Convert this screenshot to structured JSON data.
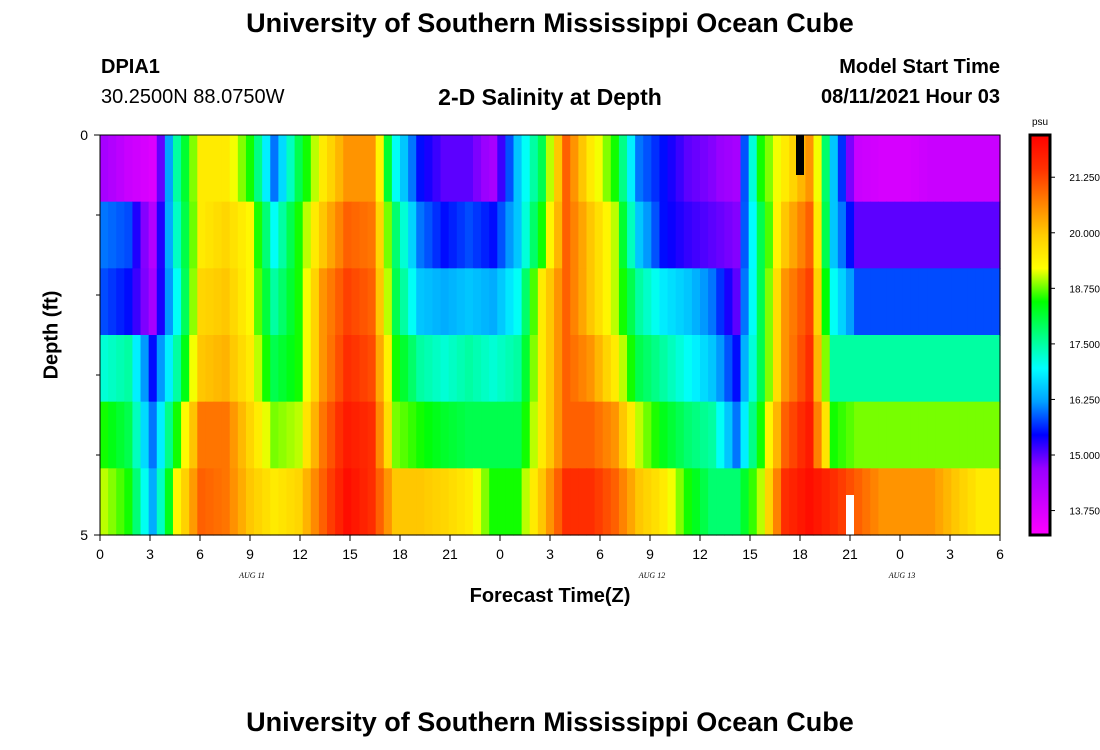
{
  "header": {
    "title": "University of Southern Mississippi Ocean Cube",
    "station": "DPIA1",
    "coords": "30.2500N  88.0750W",
    "subtitle": "2-D Salinity at Depth",
    "model_start_label": "Model Start Time",
    "model_start_value": "08/11/2021 Hour 03"
  },
  "footer": {
    "title": "University of Southern Mississippi Ocean Cube"
  },
  "colors": {
    "ramp": [
      "#ff00ff",
      "#cc00ff",
      "#9900ff",
      "#0000ff",
      "#00a0ff",
      "#00ffff",
      "#00ff80",
      "#00ff00",
      "#ffff00",
      "#ffcc00",
      "#ff8000",
      "#ff3000",
      "#ff0000"
    ]
  },
  "chart_data": {
    "type": "heatmap",
    "title": "2-D Salinity at Depth",
    "xlabel": "Forecast Time(Z)",
    "ylabel": "Depth (ft)",
    "units": "psu",
    "x_hours": [
      0,
      3,
      6,
      9,
      12,
      15,
      18,
      21,
      24,
      27,
      30,
      33,
      36,
      39,
      42,
      45,
      48,
      51,
      54
    ],
    "x_tick_labels": [
      "0",
      "3",
      "6",
      "9",
      "12",
      "15",
      "18",
      "21",
      "0",
      "3",
      "6",
      "9",
      "12",
      "15",
      "18",
      "21",
      "0",
      "3",
      "6"
    ],
    "date_labels": [
      {
        "label": "AUG  11",
        "hour": 9
      },
      {
        "label": "AUG  12",
        "hour": 33
      },
      {
        "label": "AUG  13",
        "hour": 48
      }
    ],
    "ylim": [
      0,
      5
    ],
    "y_tick_labels": [
      {
        "value": 0,
        "label": "0"
      },
      {
        "value": 5,
        "label": "5"
      }
    ],
    "y_minor_ticks": [
      1,
      2,
      3,
      4
    ],
    "depth_levels": [
      0,
      1,
      2,
      3,
      4,
      5
    ],
    "vmin": 13.2,
    "vmax": 22.2,
    "colorbar_ticks": [
      "13.750",
      "15.000",
      "16.250",
      "17.500",
      "18.750",
      "20.000",
      "21.250"
    ],
    "colorbar_tick_values": [
      13.75,
      15.0,
      16.25,
      17.5,
      18.75,
      20.0,
      21.25
    ],
    "salinity": [
      [
        14.5,
        14.0,
        13.7,
        17.5,
        19.5,
        19.5,
        18.5,
        16.0,
        18.0,
        19.5,
        20.5,
        20.5,
        17.0,
        15.5,
        15.0,
        15.0,
        14.5,
        16.5,
        18.0,
        21.0,
        19.5,
        18.5,
        16.0,
        15.5,
        15.0,
        14.8,
        14.5,
        18.5,
        19.5,
        20.5,
        16.5,
        14.0,
        13.8,
        13.8,
        14.0,
        14.0,
        14.0
      ],
      [
        16.0,
        15.8,
        14.3,
        17.3,
        19.5,
        19.8,
        19.3,
        17.0,
        18.5,
        20.0,
        21.0,
        20.8,
        17.8,
        16.0,
        15.5,
        15.8,
        15.5,
        16.5,
        18.5,
        21.0,
        20.0,
        19.0,
        16.5,
        15.5,
        15.2,
        15.0,
        14.8,
        18.0,
        20.0,
        21.0,
        16.5,
        15.0,
        15.0,
        15.0,
        15.0,
        15.0,
        15.0
      ],
      [
        15.8,
        15.5,
        14.5,
        17.0,
        19.8,
        20.0,
        19.3,
        17.5,
        18.5,
        20.5,
        21.3,
        21.0,
        18.0,
        16.5,
        16.3,
        16.5,
        16.3,
        17.0,
        19.5,
        21.0,
        20.0,
        19.0,
        17.5,
        16.8,
        16.5,
        16.0,
        15.0,
        18.0,
        20.5,
        21.3,
        17.0,
        15.8,
        15.8,
        15.8,
        15.8,
        15.8,
        15.8
      ],
      [
        17.2,
        17.5,
        15.5,
        17.5,
        20.0,
        20.2,
        19.5,
        18.0,
        18.5,
        20.5,
        21.5,
        21.2,
        18.5,
        17.5,
        17.2,
        17.5,
        17.2,
        17.5,
        19.5,
        21.0,
        20.5,
        19.5,
        18.0,
        17.5,
        17.0,
        16.5,
        15.5,
        18.0,
        20.5,
        21.5,
        17.5,
        17.5,
        17.5,
        17.5,
        17.5,
        17.5,
        17.5
      ],
      [
        18.5,
        18.0,
        16.0,
        18.5,
        20.8,
        20.8,
        19.8,
        18.8,
        19.0,
        20.8,
        21.8,
        21.5,
        18.8,
        18.5,
        18.2,
        18.0,
        18.0,
        18.0,
        19.5,
        21.0,
        21.0,
        20.5,
        19.0,
        18.3,
        17.8,
        17.5,
        16.0,
        18.5,
        21.0,
        21.8,
        18.5,
        18.8,
        18.8,
        18.8,
        18.8,
        18.8,
        18.8
      ],
      [
        19.0,
        18.5,
        16.3,
        19.3,
        21.0,
        20.8,
        20.0,
        19.5,
        19.8,
        21.0,
        22.0,
        21.5,
        20.0,
        20.0,
        19.8,
        19.5,
        18.5,
        18.5,
        20.0,
        21.5,
        21.5,
        21.0,
        20.0,
        19.5,
        18.5,
        17.8,
        17.8,
        19.0,
        21.5,
        22.0,
        21.5,
        21.0,
        20.5,
        20.5,
        20.5,
        20.0,
        19.5
      ]
    ],
    "markers": [
      {
        "hour": 42,
        "depth_from": 0,
        "depth_to": 0.5,
        "color": "#000000"
      },
      {
        "hour": 45,
        "depth_from": 4.5,
        "depth_to": 5,
        "color": "#ffffff"
      }
    ]
  }
}
